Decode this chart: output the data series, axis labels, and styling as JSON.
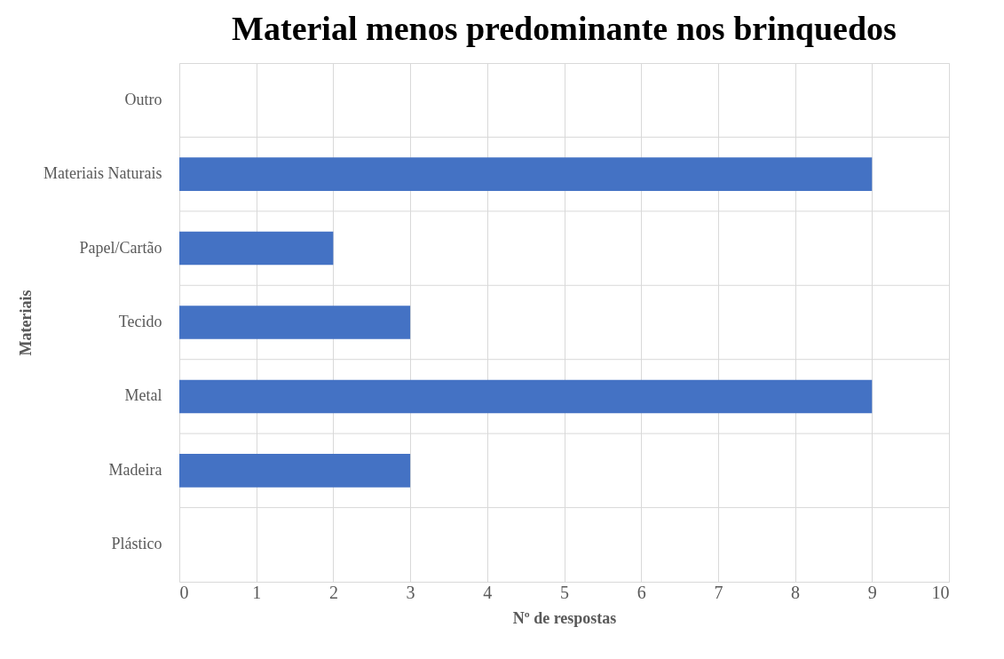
{
  "chart_data": {
    "type": "bar",
    "orientation": "horizontal",
    "title": "Material menos predominante nos brinquedos",
    "xlabel": "Nº de respostas",
    "ylabel": "Materiais",
    "categories": [
      "Outro",
      "Materiais Naturais",
      "Papel/Cartão",
      "Tecido",
      "Metal",
      "Madeira",
      "Plástico"
    ],
    "values": [
      0,
      9,
      2,
      3,
      9,
      3,
      0
    ],
    "color": "#4472c4",
    "xlim": [
      0,
      10
    ],
    "xticks": [
      0,
      1,
      2,
      3,
      4,
      5,
      6,
      7,
      8,
      9,
      10
    ],
    "grid": true
  }
}
